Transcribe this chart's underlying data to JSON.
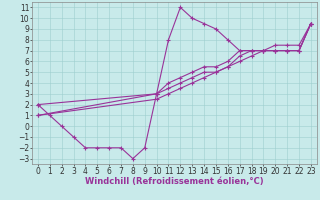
{
  "xlabel": "Windchill (Refroidissement éolien,°C)",
  "xlim": [
    -0.5,
    23.5
  ],
  "ylim": [
    -3.5,
    11.5
  ],
  "xticks": [
    0,
    1,
    2,
    3,
    4,
    5,
    6,
    7,
    8,
    9,
    10,
    11,
    12,
    13,
    14,
    15,
    16,
    17,
    18,
    19,
    20,
    21,
    22,
    23
  ],
  "yticks": [
    -3,
    -2,
    -1,
    0,
    1,
    2,
    3,
    4,
    5,
    6,
    7,
    8,
    9,
    10,
    11
  ],
  "bg_color": "#c8eaea",
  "line_color": "#993399",
  "line_width": 0.8,
  "marker": "+",
  "marker_size": 3,
  "marker_edge_width": 0.8,
  "lines": [
    {
      "x": [
        0,
        1,
        2,
        3,
        4,
        5,
        6,
        7,
        8,
        9,
        10,
        11,
        12,
        13,
        14,
        15,
        16,
        17,
        18,
        19,
        20,
        21,
        22,
        23
      ],
      "y": [
        2,
        1,
        0,
        -1,
        -2,
        -2,
        -2,
        -2,
        -3,
        -2,
        3,
        8,
        11,
        10,
        9.5,
        9,
        8,
        7,
        7,
        7,
        7,
        7,
        7,
        9.5
      ]
    },
    {
      "x": [
        0,
        10,
        11,
        12,
        13,
        14,
        15,
        16,
        17,
        18,
        19,
        20,
        21,
        22,
        23
      ],
      "y": [
        2,
        3,
        4,
        4.5,
        5,
        5.5,
        5.5,
        6,
        7,
        7,
        7,
        7.5,
        7.5,
        7.5,
        9.5
      ]
    },
    {
      "x": [
        0,
        10,
        11,
        12,
        13,
        14,
        15,
        16,
        17,
        18,
        19,
        20,
        21,
        22,
        23
      ],
      "y": [
        1,
        3,
        3.5,
        4,
        4.5,
        5,
        5,
        5.5,
        6.5,
        7,
        7,
        7,
        7,
        7,
        9.5
      ]
    },
    {
      "x": [
        0,
        10,
        11,
        12,
        13,
        14,
        15,
        16,
        17,
        18,
        19,
        20,
        21,
        22,
        23
      ],
      "y": [
        1,
        2.5,
        3,
        3.5,
        4,
        4.5,
        5,
        5.5,
        6,
        6.5,
        7,
        7,
        7,
        7,
        9.5
      ]
    }
  ],
  "grid_color": "#9ecece",
  "font_size": 6,
  "tick_font_size": 5.5
}
